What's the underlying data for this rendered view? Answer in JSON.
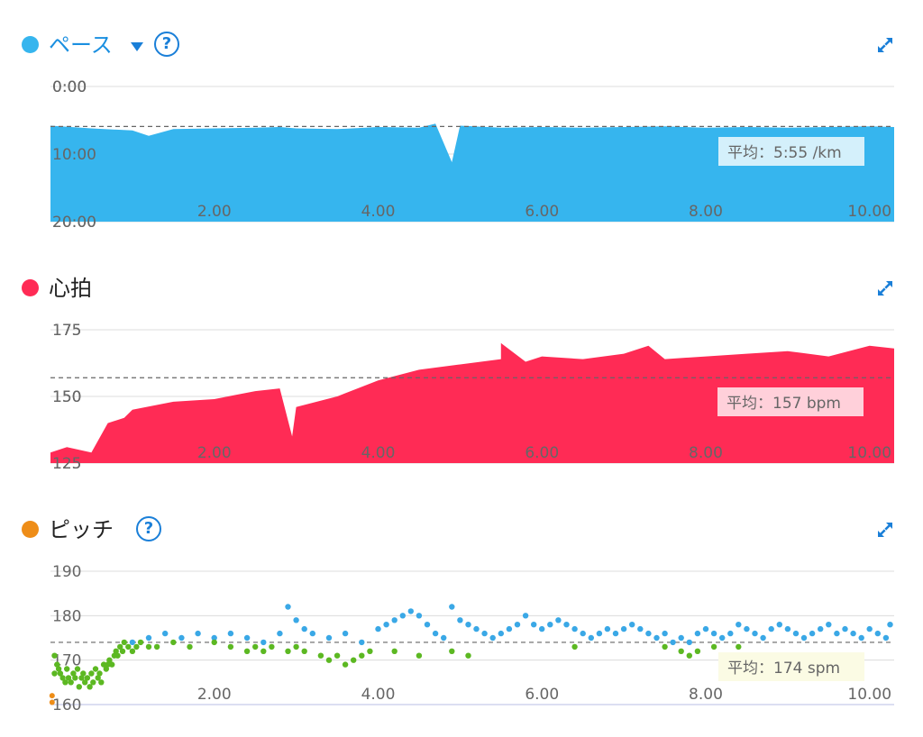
{
  "colors": {
    "pace": "#36b5ee",
    "heart": "#ff2b55",
    "cadence_dot": "#ee8d18",
    "cadence_high": "#3aa8e6",
    "cadence_low": "#5cb822",
    "accent": "#1a7fd8"
  },
  "icons": {
    "help": "?",
    "expand": "expand-icon",
    "dropdown": "caret-down-icon"
  },
  "panels": {
    "pace": {
      "title": "ペース",
      "avg_label": "平均：5:55 /km"
    },
    "heart": {
      "title": "心拍",
      "avg_label": "平均：157 bpm"
    },
    "cadence": {
      "title": "ピッチ",
      "avg_label": "平均：174 spm"
    }
  },
  "chart_data": [
    {
      "type": "area",
      "title": "ペース",
      "x_ticks": [
        "2.00",
        "4.00",
        "6.00",
        "8.00",
        "10.00"
      ],
      "y_ticks": [
        "0:00",
        "10:00",
        "20:00"
      ],
      "ylim_minutes": [
        0,
        20
      ],
      "y_inverted": true,
      "xlim": [
        0,
        10.3
      ],
      "average": "5:55 /km",
      "average_minutes": 5.92,
      "x": [
        0,
        0.5,
        1.0,
        1.2,
        1.5,
        2.0,
        2.5,
        2.8,
        3.0,
        3.5,
        4.0,
        4.5,
        4.7,
        4.9,
        5.0,
        5.5,
        6.0,
        6.5,
        7.0,
        7.5,
        8.0,
        8.5,
        9.0,
        9.5,
        10.0,
        10.3
      ],
      "values": [
        5.8,
        6.2,
        6.5,
        7.3,
        6.3,
        6.2,
        6.1,
        6.0,
        6.2,
        6.3,
        6.0,
        6.1,
        5.5,
        11.2,
        5.8,
        6.1,
        6.0,
        6.1,
        6.0,
        5.9,
        6.1,
        6.0,
        6.1,
        6.0,
        5.9,
        6.0
      ]
    },
    {
      "type": "area",
      "title": "心拍",
      "x_ticks": [
        "2.00",
        "4.00",
        "6.00",
        "8.00",
        "10.00"
      ],
      "y_ticks": [
        "175",
        "150",
        "125"
      ],
      "ylim": [
        125,
        175
      ],
      "xlim": [
        0,
        10.3
      ],
      "average": "157 bpm",
      "average_value": 157,
      "x": [
        0,
        0.2,
        0.5,
        0.7,
        0.9,
        1.0,
        1.5,
        2.0,
        2.5,
        2.8,
        2.95,
        3.0,
        3.5,
        4.0,
        4.5,
        5.0,
        5.5,
        5.5,
        5.8,
        6.0,
        6.5,
        7.0,
        7.3,
        7.5,
        8.0,
        8.5,
        9.0,
        9.5,
        10.0,
        10.3
      ],
      "values": [
        129,
        131,
        129,
        140,
        142,
        145,
        148,
        149,
        152,
        153,
        135,
        146,
        150,
        156,
        160,
        162,
        164,
        170,
        163,
        165,
        164,
        166,
        169,
        164,
        165,
        166,
        167,
        165,
        169,
        168
      ]
    },
    {
      "type": "scatter",
      "title": "ピッチ",
      "x_ticks": [
        "2.00",
        "4.00",
        "6.00",
        "8.00",
        "10.00"
      ],
      "y_ticks": [
        "190",
        "180",
        "170",
        "160"
      ],
      "ylim": [
        160,
        190
      ],
      "xlim": [
        0,
        10.3
      ],
      "average": "174 spm",
      "average_value": 174,
      "points_orange": [
        [
          0.02,
          162
        ],
        [
          0.02,
          160.5
        ]
      ],
      "points_green": [
        [
          0.05,
          171
        ],
        [
          0.05,
          167
        ],
        [
          0.08,
          169
        ],
        [
          0.1,
          168
        ],
        [
          0.12,
          167
        ],
        [
          0.15,
          166
        ],
        [
          0.18,
          165
        ],
        [
          0.2,
          168
        ],
        [
          0.22,
          166
        ],
        [
          0.25,
          165
        ],
        [
          0.28,
          167
        ],
        [
          0.3,
          166
        ],
        [
          0.33,
          168
        ],
        [
          0.35,
          164
        ],
        [
          0.38,
          166
        ],
        [
          0.4,
          167
        ],
        [
          0.42,
          165
        ],
        [
          0.45,
          166
        ],
        [
          0.48,
          164
        ],
        [
          0.5,
          167
        ],
        [
          0.52,
          165
        ],
        [
          0.55,
          168
        ],
        [
          0.58,
          166
        ],
        [
          0.6,
          167
        ],
        [
          0.62,
          165
        ],
        [
          0.65,
          169
        ],
        [
          0.68,
          168
        ],
        [
          0.7,
          169
        ],
        [
          0.72,
          170
        ],
        [
          0.75,
          169
        ],
        [
          0.78,
          171
        ],
        [
          0.8,
          172
        ],
        [
          0.82,
          171
        ],
        [
          0.85,
          173
        ],
        [
          0.88,
          172
        ],
        [
          0.9,
          174
        ],
        [
          0.95,
          173
        ],
        [
          1.0,
          172
        ],
        [
          1.05,
          173
        ],
        [
          1.1,
          174
        ],
        [
          1.2,
          173
        ],
        [
          1.3,
          173
        ],
        [
          1.5,
          174
        ],
        [
          1.7,
          173
        ],
        [
          2.0,
          174
        ],
        [
          2.2,
          173
        ],
        [
          2.4,
          172
        ],
        [
          2.5,
          173
        ],
        [
          2.6,
          172
        ],
        [
          2.7,
          173
        ],
        [
          2.9,
          172
        ],
        [
          3.0,
          173
        ],
        [
          3.1,
          172
        ],
        [
          3.3,
          171
        ],
        [
          3.4,
          170
        ],
        [
          3.5,
          171
        ],
        [
          3.6,
          169
        ],
        [
          3.7,
          170
        ],
        [
          3.8,
          171
        ],
        [
          3.9,
          172
        ],
        [
          4.2,
          172
        ],
        [
          4.5,
          171
        ],
        [
          4.9,
          172
        ],
        [
          5.1,
          171
        ],
        [
          6.4,
          173
        ],
        [
          7.5,
          173
        ],
        [
          7.7,
          172
        ],
        [
          7.8,
          171
        ],
        [
          7.9,
          172
        ],
        [
          8.1,
          173
        ],
        [
          8.4,
          173
        ]
      ],
      "points_blue": [
        [
          1.0,
          174
        ],
        [
          1.2,
          175
        ],
        [
          1.4,
          176
        ],
        [
          1.6,
          175
        ],
        [
          1.8,
          176
        ],
        [
          2.0,
          175
        ],
        [
          2.2,
          176
        ],
        [
          2.4,
          175
        ],
        [
          2.6,
          174
        ],
        [
          2.8,
          176
        ],
        [
          2.9,
          182
        ],
        [
          3.0,
          179
        ],
        [
          3.1,
          177
        ],
        [
          3.2,
          176
        ],
        [
          3.4,
          175
        ],
        [
          3.6,
          176
        ],
        [
          3.8,
          174
        ],
        [
          4.0,
          177
        ],
        [
          4.1,
          178
        ],
        [
          4.2,
          179
        ],
        [
          4.3,
          180
        ],
        [
          4.4,
          181
        ],
        [
          4.5,
          180
        ],
        [
          4.6,
          178
        ],
        [
          4.7,
          176
        ],
        [
          4.8,
          175
        ],
        [
          4.9,
          182
        ],
        [
          5.0,
          179
        ],
        [
          5.1,
          178
        ],
        [
          5.2,
          177
        ],
        [
          5.3,
          176
        ],
        [
          5.4,
          175
        ],
        [
          5.5,
          176
        ],
        [
          5.6,
          177
        ],
        [
          5.7,
          178
        ],
        [
          5.8,
          180
        ],
        [
          5.9,
          178
        ],
        [
          6.0,
          177
        ],
        [
          6.1,
          178
        ],
        [
          6.2,
          179
        ],
        [
          6.3,
          178
        ],
        [
          6.4,
          177
        ],
        [
          6.5,
          176
        ],
        [
          6.6,
          175
        ],
        [
          6.7,
          176
        ],
        [
          6.8,
          177
        ],
        [
          6.9,
          176
        ],
        [
          7.0,
          177
        ],
        [
          7.1,
          178
        ],
        [
          7.2,
          177
        ],
        [
          7.3,
          176
        ],
        [
          7.4,
          175
        ],
        [
          7.5,
          176
        ],
        [
          7.6,
          174
        ],
        [
          7.7,
          175
        ],
        [
          7.8,
          174
        ],
        [
          7.9,
          176
        ],
        [
          8.0,
          177
        ],
        [
          8.1,
          176
        ],
        [
          8.2,
          175
        ],
        [
          8.3,
          176
        ],
        [
          8.4,
          178
        ],
        [
          8.5,
          177
        ],
        [
          8.6,
          176
        ],
        [
          8.7,
          175
        ],
        [
          8.8,
          177
        ],
        [
          8.9,
          178
        ],
        [
          9.0,
          177
        ],
        [
          9.1,
          176
        ],
        [
          9.2,
          175
        ],
        [
          9.3,
          176
        ],
        [
          9.4,
          177
        ],
        [
          9.5,
          178
        ],
        [
          9.6,
          176
        ],
        [
          9.7,
          177
        ],
        [
          9.8,
          176
        ],
        [
          9.9,
          175
        ],
        [
          10.0,
          177
        ],
        [
          10.1,
          176
        ],
        [
          10.2,
          175
        ],
        [
          10.25,
          178
        ]
      ]
    }
  ]
}
